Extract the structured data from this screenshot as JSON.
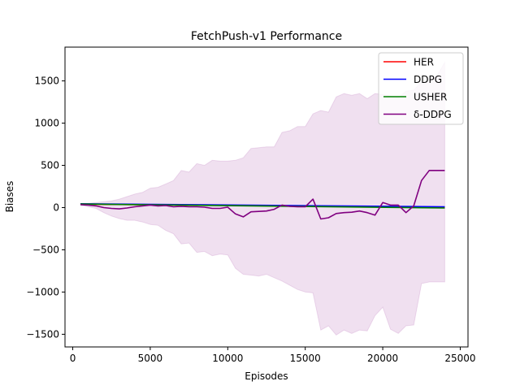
{
  "chart_data": {
    "type": "line",
    "title": "FetchPush-v1 Performance",
    "xlabel": "Episodes",
    "ylabel": "Biases",
    "xlim": [
      -500,
      25500
    ],
    "ylim": [
      -1650,
      1900
    ],
    "xticks": [
      0,
      5000,
      10000,
      15000,
      20000,
      25000
    ],
    "yticks": [
      -1500,
      -1000,
      -500,
      0,
      500,
      1000,
      1500
    ],
    "xtick_labels": [
      "0",
      "5000",
      "10000",
      "15000",
      "20000",
      "25000"
    ],
    "ytick_labels": [
      "−1500",
      "−1000",
      "−500",
      "0",
      "500",
      "1000",
      "1500"
    ],
    "grid": false,
    "legend_position": "top-right",
    "series": [
      {
        "name": "HER",
        "color": "#ff0000",
        "x": [
          500,
          24000
        ],
        "y": [
          40,
          5
        ]
      },
      {
        "name": "DDPG",
        "color": "#0000ff",
        "x": [
          500,
          24000
        ],
        "y": [
          45,
          10
        ]
      },
      {
        "name": "USHER",
        "color": "#008000",
        "x": [
          500,
          24000
        ],
        "y": [
          42,
          -5
        ]
      },
      {
        "name": "δ-DDPG",
        "color": "#800080",
        "x": [
          500,
          1000,
          1500,
          2000,
          2500,
          3000,
          3500,
          4000,
          4500,
          5000,
          5500,
          6000,
          6500,
          7000,
          7500,
          8000,
          8500,
          9000,
          9500,
          10000,
          10500,
          11000,
          11500,
          12000,
          12500,
          13000,
          13500,
          14000,
          14500,
          15000,
          15500,
          16000,
          16500,
          17000,
          17500,
          18000,
          18500,
          19000,
          19500,
          20000,
          20500,
          21000,
          21500,
          22000,
          22500,
          23000,
          23500,
          24000
        ],
        "y": [
          35,
          30,
          20,
          0,
          -10,
          -15,
          -5,
          10,
          20,
          30,
          20,
          25,
          10,
          15,
          10,
          10,
          5,
          -10,
          -10,
          5,
          -75,
          -110,
          -50,
          -45,
          -40,
          -20,
          30,
          15,
          10,
          10,
          100,
          -135,
          -120,
          -70,
          -60,
          -55,
          -40,
          -60,
          -90,
          60,
          30,
          30,
          -60,
          20,
          320,
          440,
          440,
          440
        ],
        "band_upper": [
          50,
          50,
          60,
          70,
          80,
          100,
          130,
          160,
          180,
          230,
          240,
          280,
          320,
          440,
          420,
          520,
          500,
          560,
          550,
          550,
          560,
          590,
          700,
          710,
          720,
          720,
          890,
          910,
          960,
          960,
          1110,
          1150,
          1130,
          1310,
          1350,
          1330,
          1350,
          1290,
          1350,
          1340,
          1320,
          1300,
          1380,
          1390,
          1490,
          1500,
          1560,
          1720
        ],
        "band_lower": [
          30,
          10,
          -10,
          -60,
          -100,
          -130,
          -150,
          -150,
          -170,
          -200,
          -210,
          -270,
          -310,
          -430,
          -420,
          -530,
          -520,
          -570,
          -550,
          -560,
          -720,
          -790,
          -800,
          -810,
          -790,
          -830,
          -870,
          -920,
          -970,
          -1000,
          -1010,
          -1450,
          -1400,
          -1510,
          -1450,
          -1490,
          -1450,
          -1460,
          -1280,
          -1180,
          -1440,
          -1490,
          -1400,
          -1390,
          -900,
          -880,
          -880,
          -880
        ]
      }
    ]
  }
}
